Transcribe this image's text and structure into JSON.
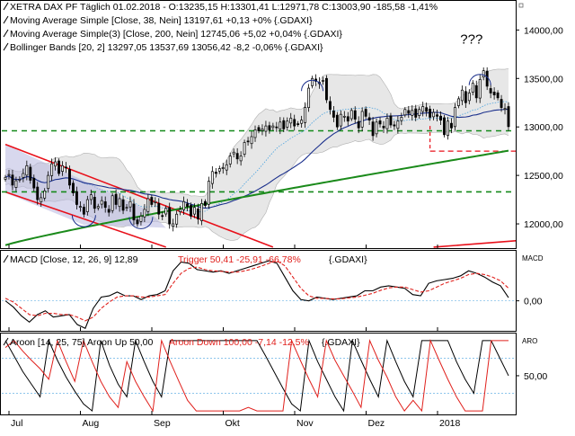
{
  "chart_data": [
    {
      "type": "candlestick",
      "legend": [
        {
          "text": "XETRA DAX PF Täglich  01.02.2018 - O:13235,15 H:13301,41 L:12971,78 C:13003,90 -185,58 -1,41%",
          "color": "#000000"
        },
        {
          "text": "Moving Average Simple [Close, 38, Nein]  13197,61 +0,13 +0% {.GDAXI}",
          "color": "#1a2f8c"
        },
        {
          "text": "Moving Average Simple(3) [Close, 200, Nein]  12745,06 +5,02 +0,04% {.GDAXI}",
          "color": "#1a8a1a"
        },
        {
          "text": "Bollinger Bands [20, 2]  13297,05 13537,69 13056,42 -8,2 -0,06% {.GDAXI}",
          "color": "#4aa3df"
        }
      ],
      "annotation": "???",
      "ylim": [
        11750,
        14300
      ],
      "y_ticks": [
        {
          "value": 14000,
          "label": "14000,00"
        },
        {
          "value": 13500,
          "label": "13500,00"
        },
        {
          "value": 13000,
          "label": "13000,00"
        },
        {
          "value": 12500,
          "label": "12500,00"
        },
        {
          "value": 12000,
          "label": "12000,00"
        }
      ],
      "x_labels": [
        "Jul",
        "Aug",
        "Sep",
        "Okt",
        "Nov",
        "Dez",
        "2018"
      ],
      "support_levels": [
        12960,
        12330
      ],
      "marked_low": 12750,
      "close_series": [
        12480,
        12510,
        12400,
        12445,
        12460,
        12520,
        12600,
        12450,
        12370,
        12250,
        12270,
        12340,
        12500,
        12620,
        12640,
        12520,
        12600,
        12580,
        12400,
        12320,
        12200,
        12180,
        12100,
        12250,
        12300,
        12160,
        12180,
        12240,
        12170,
        12120,
        12290,
        12200,
        12260,
        12140,
        12170,
        12230,
        12040,
        12000,
        12080,
        12150,
        12260,
        12200,
        12230,
        12100,
        12080,
        12160,
        12000,
        12000,
        12100,
        12150,
        12230,
        12180,
        12080,
        12170,
        12050,
        12210,
        12190,
        12440,
        12540,
        12520,
        12570,
        12580,
        12610,
        12700,
        12740,
        12670,
        12700,
        12840,
        12850,
        12900,
        12970,
        12960,
        12980,
        13010,
        12970,
        13010,
        13000,
        13050,
        12980,
        13060,
        13090,
        13010,
        13030,
        13070,
        13200,
        13400,
        13500,
        13470,
        13460,
        13480,
        13280,
        13180,
        13100,
        13000,
        13130,
        13110,
        13060,
        13170,
        13080,
        12990,
        13160,
        13110,
        13070,
        12910,
        13050,
        13030,
        12990,
        13090,
        13020,
        13010,
        13060,
        13100,
        13180,
        13140,
        13170,
        13100,
        13180,
        13210,
        13160,
        13100,
        13150,
        13110,
        13070,
        12920,
        13060,
        12990,
        13200,
        13290,
        13380,
        13250,
        13350,
        13450,
        13300,
        13490,
        13580,
        13420,
        13350,
        13330,
        13300,
        13200,
        13190,
        13003
      ]
    },
    {
      "type": "line",
      "legend": [
        {
          "text": "MACD [Close, 12, 26, 9]  12,89",
          "color": "#000000"
        },
        {
          "text": "Trigger  50,41 -25,91 -66,78%",
          "color": "#e0201c"
        },
        {
          "text": "{.GDAXI}",
          "color": "#000000"
        }
      ],
      "side_label": "MACD",
      "ylim": [
        -120,
        200
      ],
      "y_ticks": [
        {
          "value": 0,
          "label": "0,00"
        }
      ],
      "series": [
        {
          "name": "MACD",
          "color": "#000000",
          "values": [
            0,
            -25,
            -60,
            -85,
            -55,
            -40,
            -65,
            -60,
            -55,
            -95,
            -110,
            -30,
            15,
            20,
            35,
            20,
            20,
            5,
            20,
            25,
            40,
            120,
            155,
            150,
            125,
            120,
            115,
            120,
            110,
            120,
            130,
            140,
            150,
            160,
            150,
            95,
            40,
            5,
            0,
            15,
            10,
            5,
            10,
            15,
            20,
            40,
            40,
            55,
            60,
            55,
            50,
            25,
            20,
            70,
            80,
            85,
            90,
            100,
            120,
            110,
            95,
            75,
            60,
            12.89
          ]
        },
        {
          "name": "Trigger",
          "color": "#e0201c",
          "values": [
            10,
            -5,
            -30,
            -55,
            -60,
            -50,
            -50,
            -55,
            -55,
            -65,
            -80,
            -65,
            -30,
            -5,
            15,
            20,
            20,
            15,
            15,
            20,
            25,
            70,
            110,
            130,
            135,
            125,
            120,
            118,
            115,
            115,
            120,
            128,
            138,
            150,
            160,
            140,
            95,
            50,
            20,
            10,
            10,
            8,
            8,
            12,
            15,
            22,
            30,
            42,
            52,
            55,
            55,
            45,
            35,
            40,
            55,
            70,
            80,
            90,
            105,
            110,
            105,
            95,
            80,
            50.41
          ]
        }
      ]
    },
    {
      "type": "line",
      "legend": [
        {
          "text": "Aroon [14, 25, 75]  Aroon Up 50,00",
          "color": "#000000"
        },
        {
          "text": "Aroon Down 100,00 -7,14 -12,5%",
          "color": "#e0201c"
        },
        {
          "text": "{.GDAXI}",
          "color": "#000000"
        }
      ],
      "side_label": "ARO",
      "ylim": [
        -5,
        110
      ],
      "y_ticks": [
        {
          "value": 50,
          "label": "50,00"
        }
      ],
      "reference_levels": [
        75,
        25
      ],
      "series": [
        {
          "name": "Aroon Up",
          "color": "#000000",
          "values": [
            100,
            78,
            56,
            38,
            20,
            100,
            72,
            48,
            28,
            10,
            0,
            100,
            65,
            38,
            20,
            100,
            70,
            42,
            20,
            100,
            100,
            100,
            100,
            100,
            100,
            100,
            100,
            100,
            100,
            100,
            78,
            55,
            32,
            10,
            0,
            100,
            70,
            45,
            20,
            0,
            100,
            72,
            45,
            20,
            100,
            70,
            42,
            20,
            100,
            100,
            100,
            100,
            70,
            45,
            25,
            100,
            100,
            75,
            50
          ]
        },
        {
          "name": "Aroon Down",
          "color": "#e0201c",
          "values": [
            90,
            100,
            85,
            72,
            60,
            45,
            100,
            70,
            42,
            100,
            70,
            42,
            20,
            5,
            70,
            42,
            20,
            0,
            100,
            70,
            42,
            15,
            0,
            0,
            0,
            0,
            0,
            0,
            5,
            0,
            0,
            0,
            0,
            100,
            72,
            45,
            20,
            100,
            72,
            50,
            28,
            5,
            100,
            72,
            48,
            20,
            0,
            15,
            0,
            100,
            72,
            45,
            20,
            0,
            0,
            0,
            100,
            100,
            100
          ]
        }
      ]
    }
  ]
}
